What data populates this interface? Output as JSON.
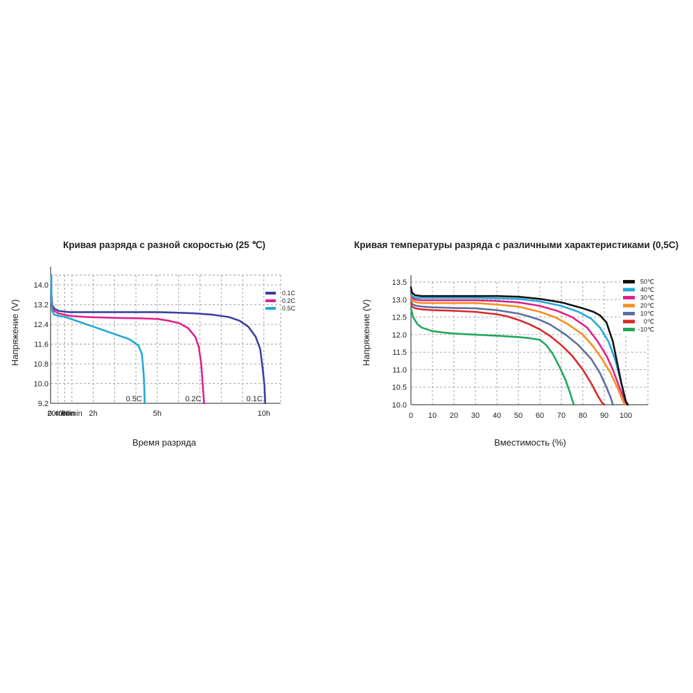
{
  "chart_data": [
    {
      "type": "line",
      "title": "Кривая разряда с разной скоростью (25 ℃)",
      "xlabel": "Время разряда",
      "ylabel": "Напряжение (V)",
      "yticks": [
        "14.0",
        "13.2",
        "12.4",
        "11.6",
        "10.8",
        "10.0",
        "9.2"
      ],
      "ylim": [
        9.2,
        14.4
      ],
      "xlim": [
        0,
        660
      ],
      "xticks": [
        {
          "label": "0",
          "value": 0
        },
        {
          "label": "20min",
          "value": 20
        },
        {
          "label": "40min",
          "value": 40
        },
        {
          "label": "60min",
          "value": 60
        },
        {
          "label": "2h",
          "value": 120
        },
        {
          "label": "5h",
          "value": 300
        },
        {
          "label": "10h",
          "value": 600
        }
      ],
      "legend_position": "top-right",
      "series": [
        {
          "name": "0.1C",
          "end_label": "0.1C",
          "color": "#3b3fa0",
          "x": [
            0,
            0.8,
            3,
            8,
            20,
            50,
            100,
            150,
            200,
            250,
            300,
            350,
            400,
            450,
            500,
            530,
            555,
            575,
            588,
            595,
            600,
            602
          ],
          "y": [
            14.4,
            13.6,
            13.2,
            13.05,
            12.95,
            12.9,
            12.9,
            12.9,
            12.9,
            12.9,
            12.9,
            12.88,
            12.85,
            12.8,
            12.7,
            12.55,
            12.3,
            11.9,
            11.4,
            10.6,
            9.9,
            9.2
          ]
        },
        {
          "name": "0.2C",
          "end_label": "0.2C",
          "color": "#e0208c",
          "x": [
            0,
            0.8,
            3,
            8,
            20,
            50,
            100,
            150,
            200,
            250,
            300,
            330,
            360,
            385,
            405,
            415,
            422,
            426,
            430
          ],
          "y": [
            14.4,
            13.5,
            13.1,
            12.95,
            12.85,
            12.75,
            12.7,
            12.68,
            12.66,
            12.65,
            12.62,
            12.55,
            12.45,
            12.25,
            11.9,
            11.5,
            10.8,
            10.0,
            9.2
          ]
        },
        {
          "name": "0.5C",
          "end_label": "0.5C",
          "color": "#22a8d8",
          "x": [
            0,
            0.8,
            3,
            8,
            20,
            40,
            60,
            80,
            100,
            120,
            150,
            180,
            220,
            245,
            255,
            260,
            262,
            263
          ],
          "y": [
            14.4,
            13.3,
            12.95,
            12.8,
            12.75,
            12.7,
            12.6,
            12.5,
            12.4,
            12.3,
            12.15,
            12.0,
            11.8,
            11.55,
            11.2,
            10.4,
            9.8,
            9.2
          ]
        }
      ]
    },
    {
      "type": "line",
      "title": "Кривая температуры разряда с различными характеристиками (0,5C)",
      "xlabel": "Вместимость (%)",
      "ylabel": "Напряжение (V)",
      "yticks": [
        "13.5",
        "13.0",
        "12.5",
        "12.0",
        "11.5",
        "11.0",
        "10.5",
        "10.0"
      ],
      "ylim": [
        10.0,
        13.5
      ],
      "xticks": [
        "0",
        "10",
        "20",
        "30",
        "40",
        "50",
        "60",
        "70",
        "80",
        "90",
        "100"
      ],
      "xlim": [
        0,
        110
      ],
      "legend_position": "top-right",
      "series": [
        {
          "name": "50℃",
          "color": "#111111",
          "x": [
            0,
            0.5,
            2,
            5,
            10,
            20,
            30,
            40,
            50,
            60,
            70,
            80,
            85,
            88,
            91,
            94,
            96,
            98,
            100,
            101
          ],
          "y": [
            13.35,
            13.2,
            13.12,
            13.1,
            13.1,
            13.1,
            13.1,
            13.1,
            13.08,
            13.02,
            12.92,
            12.75,
            12.65,
            12.55,
            12.35,
            11.8,
            11.2,
            10.6,
            10.1,
            10.0
          ]
        },
        {
          "name": "40℃",
          "color": "#22a8d8",
          "x": [
            0,
            0.5,
            2,
            5,
            10,
            20,
            30,
            40,
            50,
            60,
            70,
            78,
            84,
            88,
            92,
            95,
            98,
            100,
            101
          ],
          "y": [
            13.25,
            13.1,
            13.05,
            13.05,
            13.05,
            13.05,
            13.05,
            13.04,
            13.02,
            12.95,
            12.82,
            12.65,
            12.45,
            12.2,
            11.8,
            11.3,
            10.6,
            10.1,
            10.0
          ]
        },
        {
          "name": "30℃",
          "color": "#e0208c",
          "x": [
            0,
            0.5,
            2,
            5,
            10,
            20,
            30,
            40,
            50,
            60,
            68,
            75,
            82,
            87,
            91,
            94,
            97,
            99,
            100.5
          ],
          "y": [
            13.2,
            13.05,
            13.0,
            12.98,
            12.98,
            12.98,
            12.98,
            12.96,
            12.92,
            12.82,
            12.68,
            12.5,
            12.2,
            11.8,
            11.4,
            11.0,
            10.5,
            10.2,
            10.0
          ]
        },
        {
          "name": "20℃",
          "color": "#f4901e",
          "x": [
            0,
            0.5,
            2,
            5,
            10,
            20,
            30,
            40,
            50,
            60,
            67,
            73,
            80,
            85,
            89,
            93,
            96,
            98,
            99.5
          ],
          "y": [
            13.1,
            12.98,
            12.93,
            12.9,
            12.9,
            12.9,
            12.9,
            12.86,
            12.8,
            12.65,
            12.5,
            12.3,
            12.0,
            11.65,
            11.3,
            10.9,
            10.5,
            10.2,
            10.0
          ]
        },
        {
          "name": "10℃",
          "color": "#5a6ea0",
          "x": [
            0,
            0.5,
            2,
            5,
            10,
            20,
            30,
            40,
            50,
            55,
            60,
            65,
            72,
            78,
            84,
            88,
            91,
            93,
            94
          ],
          "y": [
            13.0,
            12.88,
            12.83,
            12.8,
            12.78,
            12.76,
            12.75,
            12.7,
            12.6,
            12.52,
            12.42,
            12.28,
            12.0,
            11.7,
            11.3,
            10.9,
            10.5,
            10.2,
            10.0
          ]
        },
        {
          "name": "0℃",
          "color": "#d82828",
          "x": [
            0,
            0.5,
            2,
            5,
            10,
            20,
            30,
            40,
            45,
            50,
            55,
            60,
            65,
            70,
            75,
            80,
            84,
            87,
            89,
            90
          ],
          "y": [
            12.9,
            12.8,
            12.75,
            12.72,
            12.7,
            12.68,
            12.65,
            12.58,
            12.52,
            12.42,
            12.3,
            12.15,
            11.95,
            11.7,
            11.4,
            11.0,
            10.6,
            10.25,
            10.05,
            10.0
          ]
        },
        {
          "name": "-10℃",
          "color": "#1fa85a",
          "x": [
            0,
            1,
            3,
            5,
            10,
            15,
            20,
            30,
            40,
            50,
            55,
            60,
            63,
            66,
            69,
            72,
            74,
            75,
            75.8
          ],
          "y": [
            12.75,
            12.5,
            12.3,
            12.2,
            12.1,
            12.06,
            12.03,
            12.0,
            11.97,
            11.93,
            11.9,
            11.85,
            11.7,
            11.45,
            11.1,
            10.7,
            10.35,
            10.15,
            10.0
          ]
        }
      ]
    }
  ]
}
